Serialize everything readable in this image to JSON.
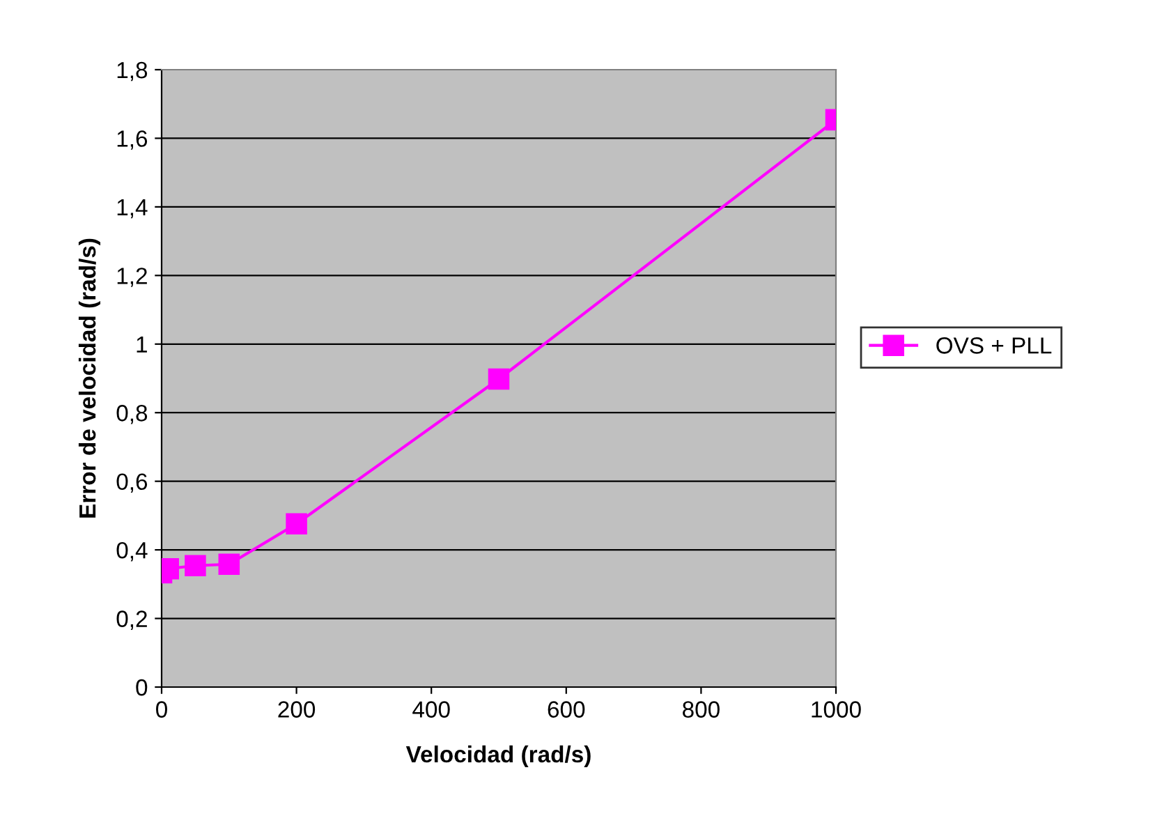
{
  "chart_data": {
    "type": "line",
    "xlabel": "Velocidad (rad/s)",
    "ylabel": "Error de velocidad (rad/s)",
    "x": [
      0,
      10,
      50,
      100,
      200,
      500,
      1000
    ],
    "series": [
      {
        "name": "OVS + PLL",
        "color": "#ff00ff",
        "values": [
          0.333,
          0.345,
          0.354,
          0.358,
          0.476,
          0.898,
          1.654
        ]
      }
    ],
    "xlim": [
      0,
      1000
    ],
    "xticks": [
      0,
      200,
      400,
      600,
      800,
      1000
    ],
    "ylim": [
      0,
      1.8
    ],
    "yticks": [
      0,
      {
        "value": 0.2,
        "label": "0,2"
      },
      {
        "value": 0.4,
        "label": "0,4"
      },
      {
        "value": 0.6,
        "label": "0,6"
      },
      {
        "value": 0.8,
        "label": "0,8"
      },
      1,
      {
        "value": 1.2,
        "label": "1,2"
      },
      {
        "value": 1.4,
        "label": "1,4"
      },
      {
        "value": 1.6,
        "label": "1,6"
      },
      {
        "value": 1.8,
        "label": "1,8"
      }
    ],
    "grid": "y",
    "legend": "right",
    "marker": "square",
    "line_style": "solid"
  }
}
